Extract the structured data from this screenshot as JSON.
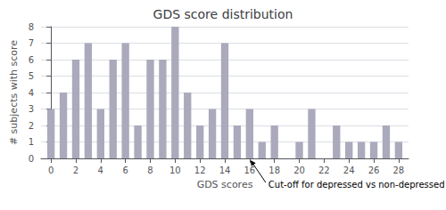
{
  "chart_data": {
    "type": "bar",
    "title": "GDS score distribution",
    "xlabel": "GDS scores",
    "ylabel": "# subjects with score",
    "x": [
      0,
      1,
      2,
      3,
      4,
      5,
      6,
      7,
      8,
      9,
      10,
      11,
      12,
      13,
      14,
      15,
      16,
      17,
      18,
      19,
      20,
      21,
      22,
      23,
      24,
      25,
      26,
      27,
      28
    ],
    "values": [
      3,
      4,
      6,
      7,
      3,
      6,
      7,
      2,
      6,
      6,
      8,
      4,
      2,
      3,
      7,
      2,
      3,
      1,
      2,
      0,
      1,
      3,
      0,
      2,
      1,
      1,
      1,
      2,
      1
    ],
    "color": "#aaaabc",
    "xlim": [
      -0.8,
      28.8
    ],
    "xticks": [
      0,
      2,
      4,
      6,
      8,
      10,
      12,
      14,
      16,
      18,
      20,
      22,
      24,
      26,
      28
    ],
    "ylim": [
      0,
      8
    ],
    "yticks": [
      0,
      1,
      2,
      3,
      4,
      5,
      6,
      7,
      8
    ],
    "grid": true,
    "annotations": [
      {
        "text": "Cut-off for depressed vs non-depressed",
        "x": 16,
        "y": 0
      }
    ]
  }
}
